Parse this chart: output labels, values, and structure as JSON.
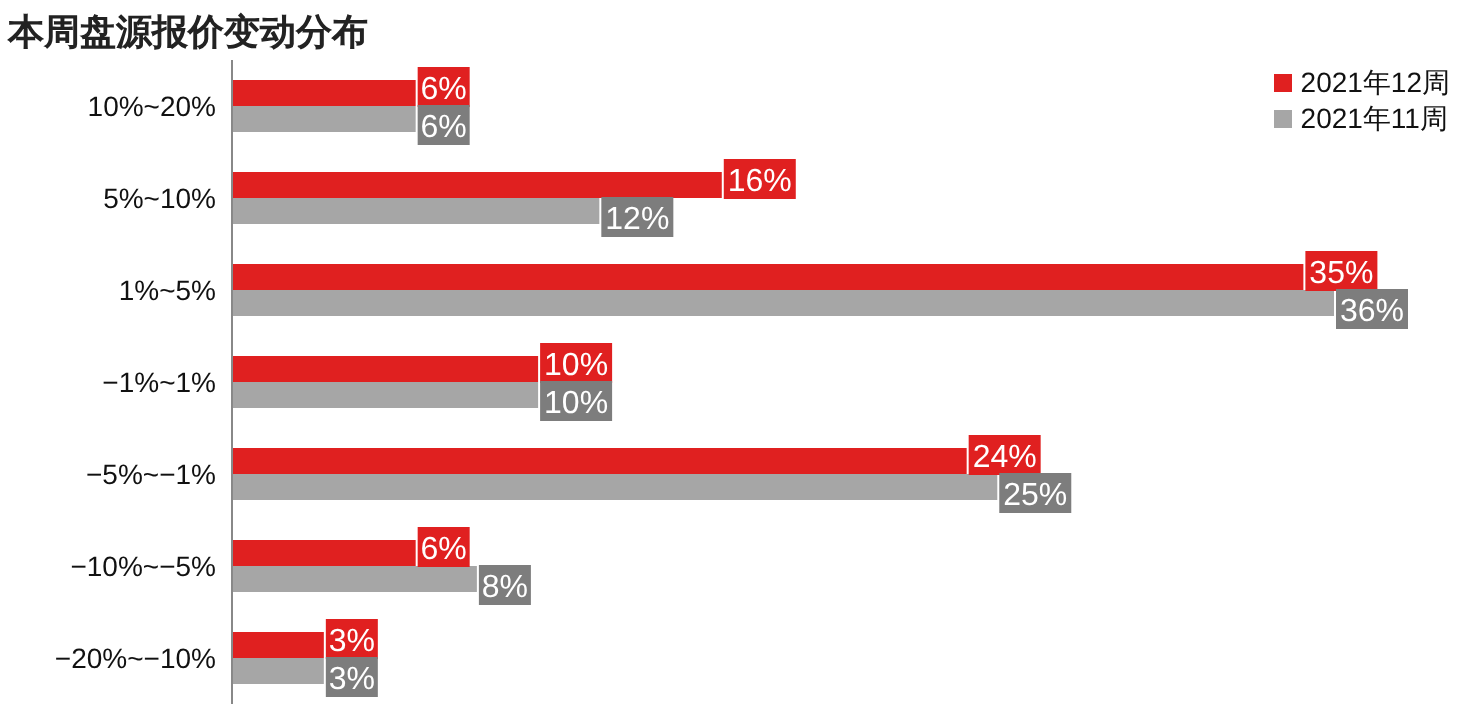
{
  "chart_data": {
    "type": "bar",
    "orientation": "horizontal",
    "title": "本周盘源报价变动分布",
    "categories": [
      "10%~20%",
      "5%~10%",
      "1%~5%",
      "−1%~1%",
      "−5%~−1%",
      "−10%~−5%",
      "−20%~−10%"
    ],
    "series": [
      {
        "name": "2021年12周",
        "color": "#e02020",
        "values": [
          6,
          16,
          35,
          10,
          24,
          6,
          3
        ],
        "value_labels": [
          "6%",
          "16%",
          "35%",
          "10%",
          "24%",
          "6%",
          "3%"
        ]
      },
      {
        "name": "2021年11周",
        "color": "#a6a6a6",
        "values": [
          6,
          12,
          36,
          10,
          25,
          8,
          3
        ],
        "value_labels": [
          "6%",
          "12%",
          "36%",
          "10%",
          "25%",
          "8%",
          "3%"
        ]
      }
    ],
    "legend": "top right"
  }
}
